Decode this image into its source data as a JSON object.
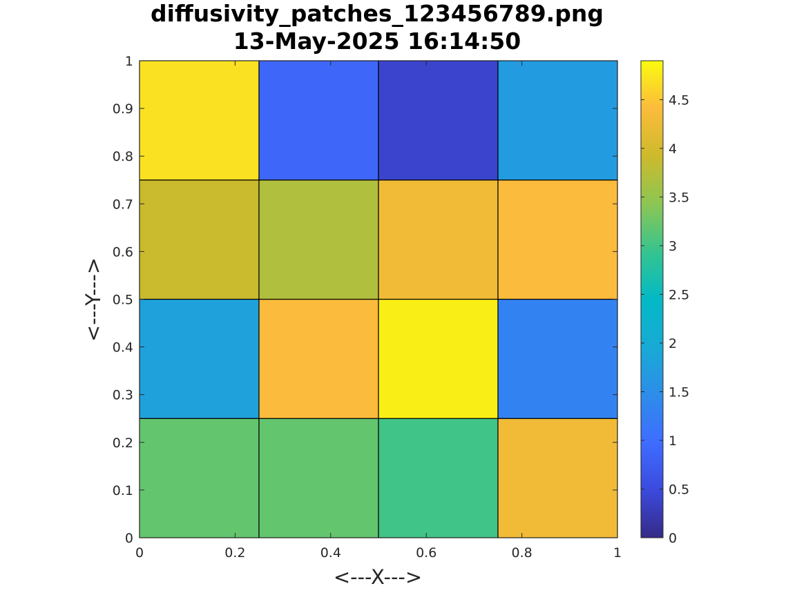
{
  "chart_data": {
    "type": "heatmap",
    "title": [
      "diffusivity_patches_123456789.png",
      "13-May-2025 16:14:50"
    ],
    "xlabel": "<---X--->",
    "ylabel": "<---Y--->",
    "xlim": [
      0,
      1
    ],
    "ylim": [
      0,
      1
    ],
    "x_ticks": [
      "0",
      "0.2",
      "0.4",
      "0.6",
      "0.8",
      "1"
    ],
    "y_ticks": [
      "0",
      "0.1",
      "0.2",
      "0.3",
      "0.4",
      "0.5",
      "0.6",
      "0.7",
      "0.8",
      "0.9",
      "1"
    ],
    "grid": false,
    "x_edges": [
      0,
      0.25,
      0.5,
      0.75,
      1
    ],
    "y_edges": [
      0,
      0.25,
      0.5,
      0.75,
      1
    ],
    "values_rows_bottom_to_top": [
      [
        3.2,
        3.2,
        3.0,
        4.3
      ],
      [
        1.8,
        4.4,
        4.8,
        1.3
      ],
      [
        3.9,
        3.7,
        4.3,
        4.4
      ],
      [
        4.7,
        0.9,
        0.4,
        1.7
      ]
    ],
    "colorbar": {
      "colormap": "parula",
      "clim": [
        0,
        4.9
      ],
      "ticks": [
        "0",
        "0.5",
        "1",
        "1.5",
        "2",
        "2.5",
        "3",
        "3.5",
        "4",
        "4.5"
      ]
    },
    "colors": {
      "cell_edge": "#000000",
      "axis": "#262626",
      "text": "#000000"
    }
  }
}
